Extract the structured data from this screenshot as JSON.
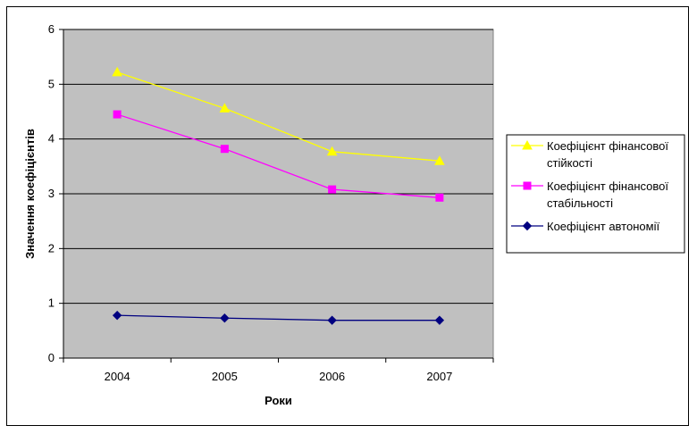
{
  "chart_data": {
    "type": "line",
    "categories": [
      "2004",
      "2005",
      "2006",
      "2007"
    ],
    "xlabel": "Роки",
    "ylabel": "Значення коефіцієнтів",
    "ylim": [
      0,
      6
    ],
    "yticks": [
      "0",
      "1",
      "2",
      "3",
      "4",
      "5",
      "6"
    ],
    "grid": true,
    "legend_position": "right",
    "plot_background": "#c0c0c0",
    "series": [
      {
        "name": "Коефіцієнт фінансової стійкості",
        "name_lines": [
          "Коефіцієнт фінансової",
          "стійкості"
        ],
        "color": "#ffff00",
        "marker": "triangle",
        "values": [
          5.22,
          4.56,
          3.77,
          3.6
        ]
      },
      {
        "name": "Коефіцієнт фінансової стабільності",
        "name_lines": [
          "Коефіцієнт фінансової",
          "стабільності"
        ],
        "color": "#ff00ff",
        "marker": "square",
        "values": [
          4.45,
          3.82,
          3.08,
          2.93
        ]
      },
      {
        "name": "Коефіцієнт автономії",
        "name_lines": [
          "Коефіцієнт автономії"
        ],
        "color": "#000080",
        "marker": "diamond",
        "values": [
          0.78,
          0.73,
          0.69,
          0.69
        ]
      }
    ]
  }
}
